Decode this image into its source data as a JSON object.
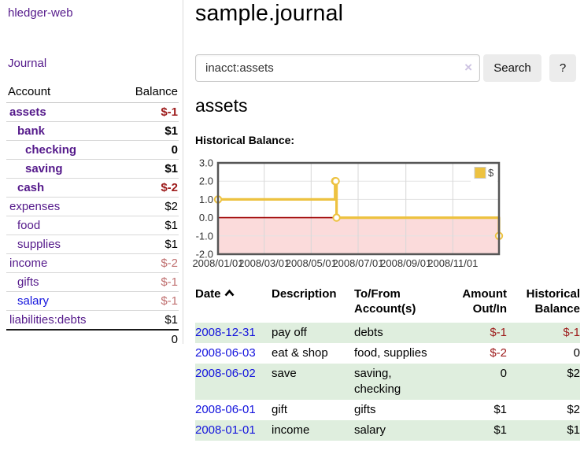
{
  "colors": {
    "link_purple": "#551a8b",
    "link_blue": "#1414dd",
    "negative_dark": "#9d1b1b",
    "negative_light": "#c07070",
    "series_gold": "#edc240",
    "negative_region_pink": "#fbdbdb",
    "zero_line_red": "#9f0000",
    "row_green": "#dfeede",
    "button_gray": "#ececec"
  },
  "sidebar": {
    "app_title": "hledger-web",
    "journal_link": "Journal",
    "accounts_table": {
      "headers": [
        "Account",
        "Balance"
      ],
      "rows": [
        {
          "name": "assets",
          "depth": 1,
          "bold": true,
          "link_color": "purple",
          "balance": "$-1",
          "balance_style": "negative"
        },
        {
          "name": "bank",
          "depth": 2,
          "bold": true,
          "link_color": "purple",
          "balance": "$1",
          "balance_style": "normal"
        },
        {
          "name": "checking",
          "depth": 3,
          "bold": true,
          "link_color": "purple",
          "balance": "0",
          "balance_style": "normal"
        },
        {
          "name": "saving",
          "depth": 3,
          "bold": true,
          "link_color": "purple",
          "balance": "$1",
          "balance_style": "normal"
        },
        {
          "name": "cash",
          "depth": 2,
          "bold": true,
          "link_color": "purple",
          "balance": "$-2",
          "balance_style": "negative"
        },
        {
          "name": "expenses",
          "depth": 1,
          "bold": false,
          "link_color": "purple",
          "balance": "$2",
          "balance_style": "normal"
        },
        {
          "name": "food",
          "depth": 2,
          "bold": false,
          "link_color": "purple",
          "balance": "$1",
          "balance_style": "normal"
        },
        {
          "name": "supplies",
          "depth": 2,
          "bold": false,
          "link_color": "purple",
          "balance": "$1",
          "balance_style": "normal"
        },
        {
          "name": "income",
          "depth": 1,
          "bold": false,
          "link_color": "purple",
          "balance": "$-2",
          "balance_style": "negative-light"
        },
        {
          "name": "gifts",
          "depth": 2,
          "bold": false,
          "link_color": "purple",
          "balance": "$-1",
          "balance_style": "negative-light"
        },
        {
          "name": "salary",
          "depth": 2,
          "bold": false,
          "link_color": "blue",
          "balance": "$-1",
          "balance_style": "negative-light"
        },
        {
          "name": "liabilities:debts",
          "depth": 1,
          "bold": false,
          "link_color": "purple",
          "balance": "$1",
          "balance_style": "normal"
        }
      ],
      "total": "0"
    }
  },
  "header": {
    "title": "sample.journal"
  },
  "search": {
    "value": "inacct:assets",
    "clear_icon": "×",
    "button_label": "Search",
    "help_label": "?"
  },
  "account_page": {
    "heading": "assets",
    "chart_label": "Historical Balance:"
  },
  "chart_data": {
    "type": "line",
    "style": "step-after",
    "title": "Historical Balance",
    "series": [
      {
        "name": "$",
        "color": "#edc240",
        "points": [
          [
            "2008-01-01",
            1
          ],
          [
            "2008-06-01",
            2
          ],
          [
            "2008-06-02",
            2
          ],
          [
            "2008-06-03",
            0
          ],
          [
            "2008-12-31",
            -1
          ]
        ]
      }
    ],
    "xlim": [
      "2008-01-01",
      "2008-12-31"
    ],
    "ylim": [
      -2,
      3
    ],
    "x_ticks": [
      "2008/01/01",
      "2008/03/01",
      "2008/05/01",
      "2008/07/01",
      "2008/09/01",
      "2008/11/01"
    ],
    "y_ticks": [
      "3.0",
      "2.0",
      "1.0",
      "0.0",
      "-1.0",
      "-2.0"
    ],
    "grid": true,
    "negative_region_shaded": true,
    "legend": {
      "label": "$",
      "position": "top-right"
    }
  },
  "register_table": {
    "headers": {
      "date": [
        "Date"
      ],
      "description": [
        "Description"
      ],
      "accounts": [
        "To/From",
        "Account(s)"
      ],
      "amount": [
        "Amount",
        "Out/In"
      ],
      "balance": [
        "Historical",
        "Balance"
      ]
    },
    "rows": [
      {
        "date": "2008-12-31",
        "description": "pay off",
        "account_lines": [
          "debts"
        ],
        "amount": "$-1",
        "amount_negative": true,
        "balance": "$-1",
        "balance_negative": true
      },
      {
        "date": "2008-06-03",
        "description": "eat & shop",
        "account_lines": [
          "food, supplies"
        ],
        "amount": "$-2",
        "amount_negative": true,
        "balance": "0",
        "balance_negative": false
      },
      {
        "date": "2008-06-02",
        "description": "save",
        "account_lines": [
          "saving,",
          "checking"
        ],
        "amount": "0",
        "amount_negative": false,
        "balance": "$2",
        "balance_negative": false
      },
      {
        "date": "2008-06-01",
        "description": "gift",
        "account_lines": [
          "gifts"
        ],
        "amount": "$1",
        "amount_negative": false,
        "balance": "$2",
        "balance_negative": false
      },
      {
        "date": "2008-01-01",
        "description": "income",
        "account_lines": [
          "salary"
        ],
        "amount": "$1",
        "amount_negative": false,
        "balance": "$1",
        "balance_negative": false
      }
    ]
  }
}
